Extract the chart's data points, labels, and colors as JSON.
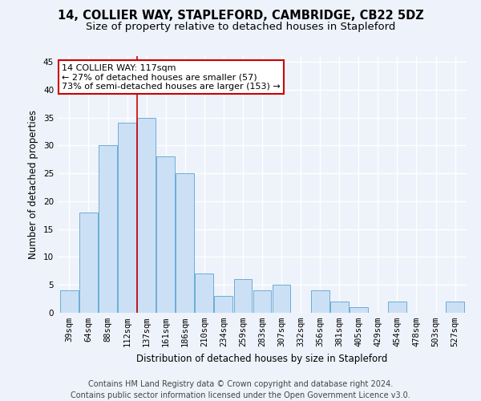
{
  "title": "14, COLLIER WAY, STAPLEFORD, CAMBRIDGE, CB22 5DZ",
  "subtitle": "Size of property relative to detached houses in Stapleford",
  "xlabel": "Distribution of detached houses by size in Stapleford",
  "ylabel": "Number of detached properties",
  "categories": [
    "39sqm",
    "64sqm",
    "88sqm",
    "112sqm",
    "137sqm",
    "161sqm",
    "186sqm",
    "210sqm",
    "234sqm",
    "259sqm",
    "283sqm",
    "307sqm",
    "332sqm",
    "356sqm",
    "381sqm",
    "405sqm",
    "429sqm",
    "454sqm",
    "478sqm",
    "503sqm",
    "527sqm"
  ],
  "values": [
    4,
    18,
    30,
    34,
    35,
    28,
    25,
    7,
    3,
    6,
    4,
    5,
    0,
    4,
    2,
    1,
    0,
    2,
    0,
    0,
    2
  ],
  "bar_color": "#cce0f5",
  "bar_edge_color": "#6aaed6",
  "property_line_x": 3.5,
  "annotation_line1": "14 COLLIER WAY: 117sqm",
  "annotation_line2": "← 27% of detached houses are smaller (57)",
  "annotation_line3": "73% of semi-detached houses are larger (153) →",
  "annotation_box_color": "#ffffff",
  "annotation_box_edge_color": "#cc0000",
  "vline_color": "#cc0000",
  "ylim": [
    0,
    46
  ],
  "yticks": [
    0,
    5,
    10,
    15,
    20,
    25,
    30,
    35,
    40,
    45
  ],
  "footer1": "Contains HM Land Registry data © Crown copyright and database right 2024.",
  "footer2": "Contains public sector information licensed under the Open Government Licence v3.0.",
  "background_color": "#eef2fa",
  "grid_color": "#ffffff",
  "title_fontsize": 10.5,
  "subtitle_fontsize": 9.5,
  "axis_label_fontsize": 8.5,
  "tick_fontsize": 7.5,
  "footer_fontsize": 7.0,
  "annotation_fontsize": 8.0
}
